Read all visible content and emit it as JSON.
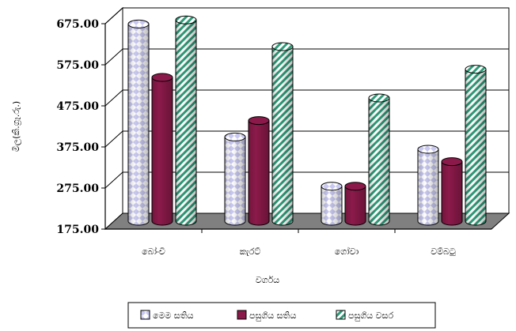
{
  "chart_data": {
    "type": "bar",
    "style": "3d-cylinder",
    "title": "",
    "xlabel": "වර්ගය",
    "ylabel": "මිල(කි.ග්‍රෑ.රු.)",
    "ylim": [
      175,
      675
    ],
    "yticks": [
      "675.00",
      "575.00",
      "475.00",
      "375.00",
      "275.00",
      "175.00"
    ],
    "categories": [
      "බෝංචි",
      "කැරට්",
      "ගෝවා",
      "වම්බටු"
    ],
    "series": [
      {
        "name": "මෙම සතිය",
        "values": [
          655,
          380,
          260,
          350
        ],
        "color": "#c8c8f0",
        "pattern": "diamond"
      },
      {
        "name": "පසුගිය සතිය",
        "values": [
          525,
          420,
          260,
          320
        ],
        "color": "#8b1a4a",
        "pattern": "solid"
      },
      {
        "name": "පසුගිය වසර",
        "values": [
          665,
          600,
          475,
          545
        ],
        "color": "#2f9a78",
        "pattern": "stripe"
      }
    ],
    "grid": true,
    "legend_position": "bottom"
  }
}
